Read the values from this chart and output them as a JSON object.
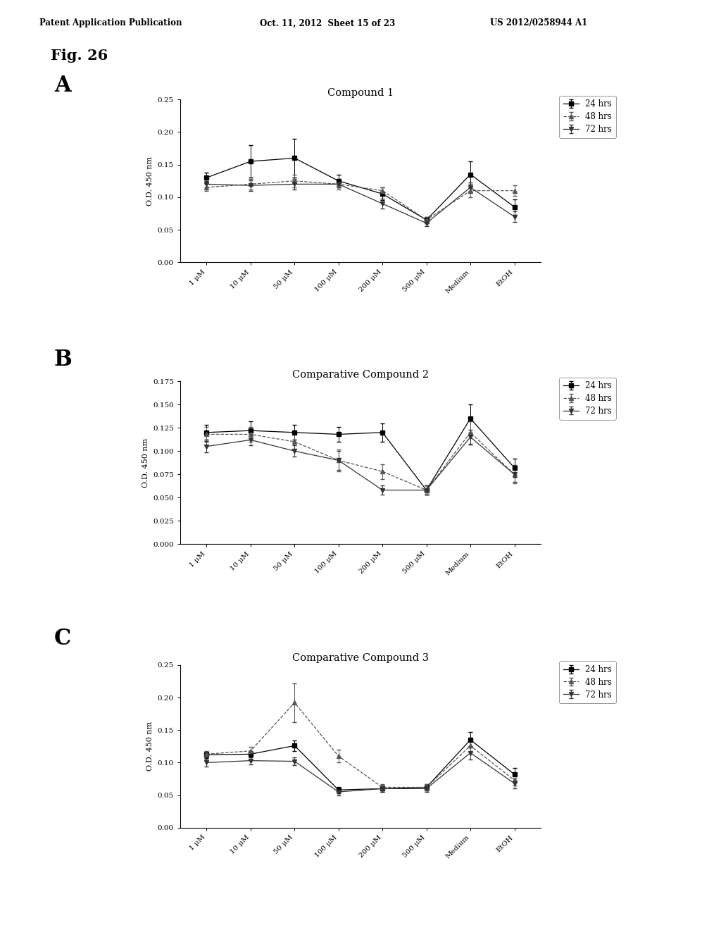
{
  "header_left": "Patent Application Publication",
  "header_mid": "Oct. 11, 2012  Sheet 15 of 23",
  "header_right": "US 2012/0258944 A1",
  "fig_label": "Fig. 26",
  "background_color": "#ffffff",
  "x_labels": [
    "1 μM",
    "10 μM",
    "50 μM",
    "100 μM",
    "200 μM",
    "500 μM",
    "Medium",
    "EtOH"
  ],
  "charts": [
    {
      "label": "A",
      "title": "Compound 1",
      "ylim": [
        0.0,
        0.25
      ],
      "yticks": [
        0.0,
        0.05,
        0.1,
        0.15,
        0.2,
        0.25
      ],
      "ytick_labels": [
        "0.00",
        "0.05",
        "0.10",
        "0.15",
        "0.20",
        "0.25"
      ],
      "series": [
        {
          "label": "24 hrs",
          "marker": "s",
          "linestyle": "-",
          "color": "#000000",
          "y": [
            0.13,
            0.155,
            0.16,
            0.125,
            0.105,
            0.065,
            0.135,
            0.085
          ],
          "yerr": [
            0.008,
            0.025,
            0.03,
            0.01,
            0.01,
            0.005,
            0.02,
            0.012
          ]
        },
        {
          "label": "48 hrs",
          "marker": "^",
          "linestyle": "--",
          "color": "#555555",
          "y": [
            0.115,
            0.12,
            0.125,
            0.12,
            0.11,
            0.065,
            0.11,
            0.11
          ],
          "yerr": [
            0.005,
            0.008,
            0.01,
            0.008,
            0.005,
            0.005,
            0.01,
            0.008
          ]
        },
        {
          "label": "72 hrs",
          "marker": "v",
          "linestyle": "-",
          "color": "#333333",
          "y": [
            0.12,
            0.118,
            0.12,
            0.12,
            0.09,
            0.06,
            0.115,
            0.07
          ],
          "yerr": [
            0.005,
            0.008,
            0.008,
            0.005,
            0.008,
            0.005,
            0.008,
            0.008
          ]
        }
      ]
    },
    {
      "label": "B",
      "title": "Comparative Compound 2",
      "ylim": [
        0.0,
        0.175
      ],
      "yticks": [
        0.0,
        0.025,
        0.05,
        0.075,
        0.1,
        0.125,
        0.15,
        0.175
      ],
      "ytick_labels": [
        "0.000",
        "0.025",
        "0.050",
        "0.075",
        "0.100",
        "0.125",
        "0.150",
        "0.175"
      ],
      "series": [
        {
          "label": "24 hrs",
          "marker": "s",
          "linestyle": "-",
          "color": "#000000",
          "y": [
            0.12,
            0.122,
            0.12,
            0.118,
            0.12,
            0.058,
            0.135,
            0.082
          ],
          "yerr": [
            0.008,
            0.01,
            0.008,
            0.008,
            0.01,
            0.005,
            0.015,
            0.01
          ]
        },
        {
          "label": "48 hrs",
          "marker": "^",
          "linestyle": "--",
          "color": "#555555",
          "y": [
            0.118,
            0.118,
            0.11,
            0.09,
            0.078,
            0.058,
            0.12,
            0.075
          ],
          "yerr": [
            0.008,
            0.008,
            0.008,
            0.012,
            0.008,
            0.005,
            0.012,
            0.01
          ]
        },
        {
          "label": "72 hrs",
          "marker": "v",
          "linestyle": "-",
          "color": "#333333",
          "y": [
            0.105,
            0.112,
            0.1,
            0.09,
            0.058,
            0.058,
            0.115,
            0.075
          ],
          "yerr": [
            0.006,
            0.006,
            0.006,
            0.01,
            0.005,
            0.005,
            0.008,
            0.008
          ]
        }
      ]
    },
    {
      "label": "C",
      "title": "Comparative Compound 3",
      "ylim": [
        0.0,
        0.25
      ],
      "yticks": [
        0.0,
        0.05,
        0.1,
        0.15,
        0.2,
        0.25
      ],
      "ytick_labels": [
        "0.00",
        "0.05",
        "0.10",
        "0.15",
        "0.20",
        "0.25"
      ],
      "series": [
        {
          "label": "24 hrs",
          "marker": "s",
          "linestyle": "-",
          "color": "#000000",
          "y": [
            0.112,
            0.113,
            0.126,
            0.058,
            0.06,
            0.062,
            0.135,
            0.082
          ],
          "yerr": [
            0.005,
            0.005,
            0.008,
            0.005,
            0.005,
            0.005,
            0.012,
            0.01
          ]
        },
        {
          "label": "48 hrs",
          "marker": "^",
          "linestyle": "--",
          "color": "#555555",
          "y": [
            0.113,
            0.118,
            0.192,
            0.11,
            0.062,
            0.062,
            0.126,
            0.073
          ],
          "yerr": [
            0.005,
            0.006,
            0.03,
            0.01,
            0.005,
            0.005,
            0.01,
            0.008
          ]
        },
        {
          "label": "72 hrs",
          "marker": "v",
          "linestyle": "-",
          "color": "#333333",
          "y": [
            0.1,
            0.103,
            0.102,
            0.055,
            0.06,
            0.06,
            0.115,
            0.068
          ],
          "yerr": [
            0.006,
            0.006,
            0.006,
            0.005,
            0.005,
            0.005,
            0.01,
            0.008
          ]
        }
      ]
    }
  ]
}
